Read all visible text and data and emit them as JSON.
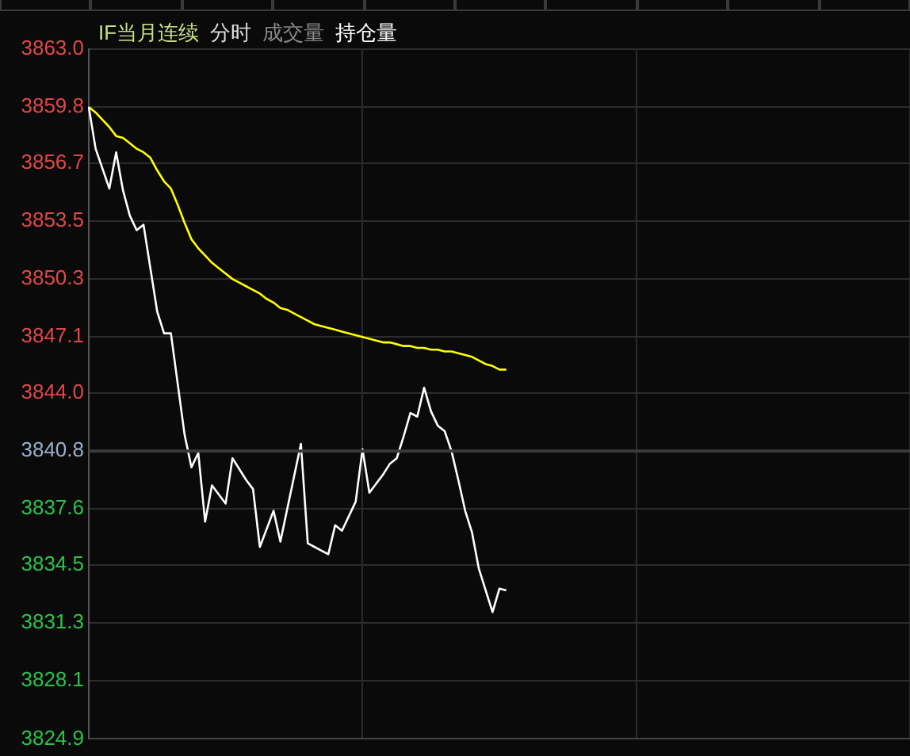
{
  "chart_data": {
    "type": "line",
    "title": "IF当月连续",
    "annotations": [
      "分时",
      "成交量",
      "持仓量"
    ],
    "categories": [
      null,
      null,
      null,
      null,
      null,
      null,
      null,
      null,
      null,
      null,
      null,
      null,
      null,
      null,
      null,
      null,
      null,
      null,
      null,
      null,
      null,
      null,
      null,
      null,
      null,
      null,
      null,
      null,
      null,
      null,
      null,
      null,
      null,
      null,
      null,
      null,
      null,
      null,
      null,
      null,
      null,
      null,
      null,
      null,
      null,
      null,
      null,
      null,
      null,
      null,
      null,
      null,
      null,
      null,
      null,
      null,
      null,
      null,
      null,
      null,
      null,
      null,
      null,
      null,
      null,
      null,
      null,
      null,
      null,
      null,
      null,
      null,
      null,
      null,
      null,
      null,
      null,
      null,
      null,
      null,
      null,
      null,
      null,
      null,
      null,
      null,
      null,
      null,
      null,
      null,
      null,
      null,
      null,
      null,
      null,
      null,
      null,
      null,
      null,
      null,
      null,
      null,
      null,
      null,
      null,
      null,
      null,
      null,
      null,
      null,
      null,
      null,
      null,
      null,
      null,
      null,
      null,
      null,
      null,
      null,
      null
    ],
    "ylim": [
      3824.9,
      3863.0
    ],
    "yticks": [
      3824.9,
      3828.1,
      3831.3,
      3834.5,
      3837.6,
      3840.8,
      {
        "value": 3844.0,
        "label": "3844.0"
      },
      3847.1,
      3850.3,
      3853.5,
      3856.7,
      3859.8,
      {
        "value": 3863.0,
        "label": "3863.0"
      }
    ],
    "tick_labels": "y",
    "grid": true,
    "legend": false,
    "marker": "none",
    "line_style": "solid",
    "ref_lines": [
      {
        "axis": "y",
        "value": 3840.8,
        "color": "#3a3a3a"
      }
    ],
    "series": [
      {
        "color": "#ffffff",
        "values": [
          3859.8,
          3857.5,
          3856.4,
          3855.3,
          3857.3,
          3855.2,
          3853.8,
          3853.0,
          3853.3,
          3850.9,
          3848.5,
          3847.3,
          3847.3,
          3844.5,
          3841.7,
          3839.9,
          3840.7,
          3836.9,
          3838.9,
          3838.4,
          3837.9,
          3840.4,
          3839.8,
          3839.2,
          3838.7,
          3835.5,
          3836.5,
          3837.5,
          3835.8,
          3837.6,
          3839.4,
          3841.2,
          3835.7,
          3835.5,
          3835.3,
          3835.1,
          3836.7,
          3836.4,
          3837.2,
          3838.0,
          3840.9,
          3838.5,
          3839.0,
          3839.5,
          3840.1,
          3840.4,
          3841.6,
          3842.9,
          3842.7,
          3844.3,
          3843.0,
          3842.2,
          3841.9,
          3840.8,
          3839.2,
          3837.5,
          3836.3,
          3834.3,
          3833.1,
          3831.9,
          3833.2,
          3833.1,
          null,
          null,
          null,
          null,
          null,
          null,
          null,
          null,
          null,
          null,
          null,
          null,
          null,
          null,
          null,
          null,
          null,
          null,
          null,
          null,
          null,
          null,
          null,
          null,
          null,
          null,
          null,
          null,
          null,
          null,
          null,
          null,
          null,
          null,
          null,
          null,
          null,
          null,
          null,
          null,
          null,
          null,
          null,
          null,
          null,
          null,
          null,
          null,
          null,
          null,
          null,
          null,
          null,
          null,
          null,
          null,
          null,
          null,
          null
        ]
      },
      {
        "color": "#ffff00",
        "values": [
          3859.8,
          3859.5,
          3859.1,
          3858.7,
          3858.2,
          3858.1,
          3857.8,
          3857.5,
          3857.3,
          3857.0,
          3856.3,
          3855.7,
          3855.3,
          3854.4,
          3853.4,
          3852.5,
          3852.0,
          3851.6,
          3851.2,
          3850.9,
          3850.6,
          3850.3,
          3850.1,
          3849.9,
          3849.7,
          3849.5,
          3849.2,
          3849.0,
          3848.7,
          3848.6,
          3848.4,
          3848.2,
          3848.0,
          3847.8,
          3847.7,
          3847.6,
          3847.5,
          3847.4,
          3847.3,
          3847.2,
          3847.1,
          3847.0,
          3846.9,
          3846.8,
          3846.8,
          3846.7,
          3846.6,
          3846.6,
          3846.5,
          3846.5,
          3846.4,
          3846.4,
          3846.3,
          3846.3,
          3846.2,
          3846.1,
          3846.0,
          3845.8,
          3845.6,
          3845.5,
          3845.3,
          3845.3,
          null,
          null,
          null,
          null,
          null,
          null,
          null,
          null,
          null,
          null,
          null,
          null,
          null,
          null,
          null,
          null,
          null,
          null,
          null,
          null,
          null,
          null,
          null,
          null,
          null,
          null,
          null,
          null,
          null,
          null,
          null,
          null,
          null,
          null,
          null,
          null,
          null,
          null,
          null,
          null,
          null,
          null,
          null,
          null,
          null,
          null,
          null,
          null,
          null,
          null,
          null,
          null,
          null,
          null,
          null,
          null,
          null,
          null,
          null
        ]
      }
    ]
  }
}
